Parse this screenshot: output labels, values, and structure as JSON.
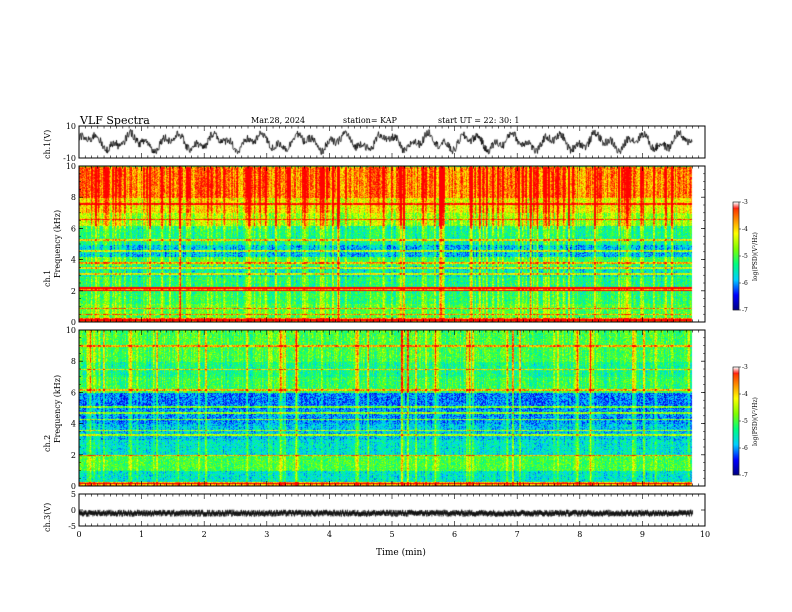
{
  "header": {
    "title": "VLF Spectra",
    "date": "Mar.28, 2024",
    "station": "station= KAP",
    "start": "start  UT  =   22: 30: 1"
  },
  "chart_data": [
    {
      "type": "line",
      "name": "ch1-waveform",
      "ylabel": "ch.1(V)",
      "ylim": [
        -10,
        10
      ],
      "yticks": [
        "10",
        "-10"
      ],
      "x_range_min": [
        0,
        9.8
      ],
      "description_values": "noisy oscillating signal mostly between about -7 V and +8 V"
    },
    {
      "type": "heatmap",
      "name": "ch1-spectrogram",
      "ylabel": "ch.1\nFrequency  (kHz)",
      "ylim": [
        0,
        10
      ],
      "yticks": [
        "0",
        "2",
        "4",
        "6",
        "8",
        "10"
      ],
      "x_range_min": [
        0,
        9.8
      ],
      "bands": [
        {
          "from": 0.0,
          "to": 0.3,
          "level": -3.6
        },
        {
          "from": 0.3,
          "to": 1.2,
          "level": -5.0
        },
        {
          "from": 1.2,
          "to": 2.0,
          "level": -5.2
        },
        {
          "from": 2.0,
          "to": 2.3,
          "level": -3.9
        },
        {
          "from": 2.3,
          "to": 2.9,
          "level": -5.3
        },
        {
          "from": 2.9,
          "to": 3.6,
          "level": -5.6
        },
        {
          "from": 3.6,
          "to": 4.2,
          "level": -5.1
        },
        {
          "from": 4.2,
          "to": 5.0,
          "level": -5.9
        },
        {
          "from": 5.0,
          "to": 5.5,
          "level": -5.4
        },
        {
          "from": 5.5,
          "to": 6.2,
          "level": -5.3
        },
        {
          "from": 6.2,
          "to": 7.0,
          "level": -4.6
        },
        {
          "from": 7.0,
          "to": 8.0,
          "level": -4.2
        },
        {
          "from": 8.0,
          "to": 10.0,
          "level": -3.6
        }
      ],
      "lines_khz": [
        0.15,
        0.5,
        0.9,
        2.05,
        2.2,
        3.1,
        3.5,
        3.8,
        4.6,
        5.3,
        6.6,
        7.6
      ]
    },
    {
      "type": "heatmap",
      "name": "ch2-spectrogram",
      "ylabel": "ch.2\nFrequency  (kHz)",
      "ylim": [
        0,
        10
      ],
      "yticks": [
        "0",
        "2",
        "4",
        "6",
        "8",
        "10"
      ],
      "x_range_min": [
        0,
        9.8
      ],
      "bands": [
        {
          "from": 0.0,
          "to": 0.3,
          "level": -3.8
        },
        {
          "from": 0.3,
          "to": 1.0,
          "level": -5.6
        },
        {
          "from": 1.0,
          "to": 2.0,
          "level": -5.0
        },
        {
          "from": 2.0,
          "to": 3.0,
          "level": -5.6
        },
        {
          "from": 3.0,
          "to": 4.0,
          "level": -5.8
        },
        {
          "from": 4.0,
          "to": 5.0,
          "level": -6.0
        },
        {
          "from": 5.0,
          "to": 6.0,
          "level": -6.1
        },
        {
          "from": 6.0,
          "to": 7.0,
          "level": -5.1
        },
        {
          "from": 7.0,
          "to": 8.0,
          "level": -5.3
        },
        {
          "from": 8.0,
          "to": 10.0,
          "level": -5.0
        }
      ],
      "lines_khz": [
        0.2,
        2.0,
        3.3,
        3.6,
        4.3,
        4.7,
        5.1,
        6.2,
        7.5,
        9.0
      ]
    },
    {
      "type": "line",
      "name": "ch3-waveform",
      "ylabel": "ch.3(V)",
      "ylim": [
        -5,
        5
      ],
      "yticks": [
        "5",
        "0",
        "-5"
      ],
      "x_range_min": [
        0,
        9.8
      ],
      "level_v": -1.0
    }
  ],
  "xaxis": {
    "label": "Time  (min)",
    "ticks": [
      "0",
      "1",
      "2",
      "3",
      "4",
      "5",
      "6",
      "7",
      "8",
      "9",
      "10"
    ],
    "range": [
      0,
      10
    ]
  },
  "colorbar": {
    "label": "log(PSD)(V²/Hz)",
    "range": [
      -7,
      -3
    ],
    "ticks": [
      "-3",
      "-4",
      "-5",
      "-6",
      "-7"
    ],
    "colors": [
      "#000080",
      "#0000ff",
      "#00d0ff",
      "#00ff80",
      "#80ff00",
      "#ffff00",
      "#ff8000",
      "#ff0000",
      "#ffffff"
    ]
  }
}
